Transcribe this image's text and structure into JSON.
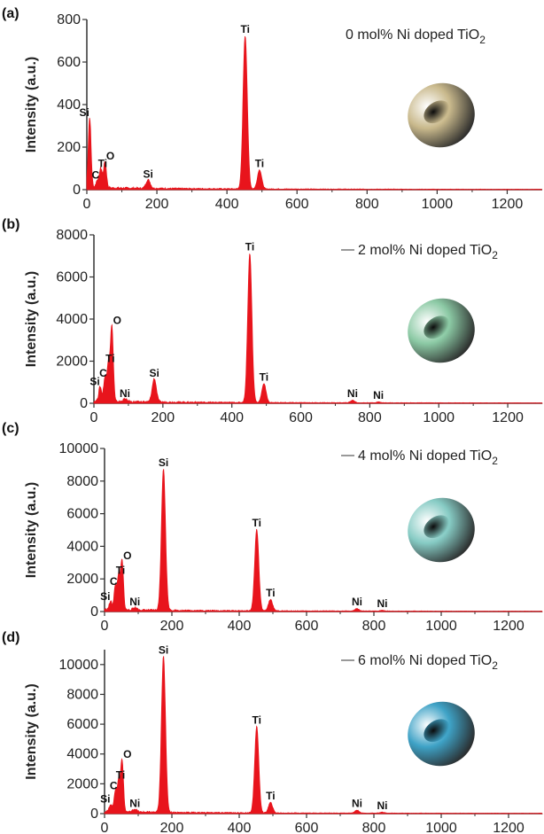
{
  "chart_data": [
    {
      "type": "line",
      "panel_label": "(a)",
      "legend": "0 mol% Ni doped TiO",
      "legend_sub": "2",
      "ylabel": "Intensity (a.u.)",
      "xlim": [
        0,
        1300
      ],
      "ylim": [
        0,
        800
      ],
      "xticks": [
        "0",
        "200",
        "400",
        "600",
        "800",
        "1000",
        "1200"
      ],
      "yticks": [
        "0",
        "200",
        "400",
        "600",
        "800"
      ],
      "series": [
        {
          "color": "#e8141c",
          "peaks": [
            {
              "x": 8,
              "y": 330,
              "label": "Si"
            },
            {
              "x": 30,
              "y": 35,
              "label": "C"
            },
            {
              "x": 40,
              "y": 90,
              "label": "Ti"
            },
            {
              "x": 52,
              "y": 125,
              "label": "O"
            },
            {
              "x": 175,
              "y": 40,
              "label": "Si"
            },
            {
              "x": 452,
              "y": 720,
              "label": "Ti"
            },
            {
              "x": 493,
              "y": 90,
              "label": "Ti"
            }
          ]
        }
      ],
      "blob_color": "#c9b98c"
    },
    {
      "type": "line",
      "panel_label": "(b)",
      "legend": "2 mol% Ni doped TiO",
      "legend_sub": "2",
      "ylabel": "Intensity (a.u.)",
      "xlim": [
        0,
        1300
      ],
      "ylim": [
        0,
        8000
      ],
      "xticks": [
        "0",
        "200",
        "400",
        "600",
        "800",
        "1000",
        "1200"
      ],
      "yticks": [
        "0",
        "2000",
        "4000",
        "6000",
        "8000"
      ],
      "series": [
        {
          "color": "#e8141c",
          "peaks": [
            {
              "x": 18,
              "y": 700,
              "label": "Si"
            },
            {
              "x": 32,
              "y": 1100,
              "label": "C"
            },
            {
              "x": 42,
              "y": 1800,
              "label": "Ti"
            },
            {
              "x": 52,
              "y": 3600,
              "label": "O"
            },
            {
              "x": 90,
              "y": 120,
              "label": "Ni"
            },
            {
              "x": 175,
              "y": 1100,
              "label": "Si"
            },
            {
              "x": 452,
              "y": 7100,
              "label": "Ti"
            },
            {
              "x": 493,
              "y": 900,
              "label": "Ti"
            },
            {
              "x": 750,
              "y": 120,
              "label": "Ni"
            },
            {
              "x": 825,
              "y": 40,
              "label": "Ni"
            }
          ]
        }
      ],
      "blob_color": "#8bc9a4"
    },
    {
      "type": "line",
      "panel_label": "(c)",
      "legend": "4 mol% Ni doped TiO",
      "legend_sub": "2",
      "ylabel": "Intensity (a.u.)",
      "xlim": [
        0,
        1300
      ],
      "ylim": [
        0,
        10000
      ],
      "xticks": [
        "0",
        "200",
        "400",
        "600",
        "800",
        "1000",
        "1200"
      ],
      "yticks": [
        "0",
        "2000",
        "4000",
        "6000",
        "8000",
        "10000"
      ],
      "series": [
        {
          "color": "#e8141c",
          "peaks": [
            {
              "x": 18,
              "y": 500,
              "label": "Si"
            },
            {
              "x": 32,
              "y": 1400,
              "label": "C"
            },
            {
              "x": 42,
              "y": 2100,
              "label": "Ti"
            },
            {
              "x": 52,
              "y": 3000,
              "label": "O"
            },
            {
              "x": 90,
              "y": 150,
              "label": "Ni"
            },
            {
              "x": 175,
              "y": 8700,
              "label": "Si"
            },
            {
              "x": 452,
              "y": 5000,
              "label": "Ti"
            },
            {
              "x": 493,
              "y": 700,
              "label": "Ti"
            },
            {
              "x": 750,
              "y": 150,
              "label": "Ni"
            },
            {
              "x": 825,
              "y": 50,
              "label": "Ni"
            }
          ]
        }
      ],
      "blob_color": "#86cbc4"
    },
    {
      "type": "line",
      "panel_label": "(d)",
      "legend": "6 mol% Ni doped TiO",
      "legend_sub": "2",
      "ylabel": "Intensity (a.u.)",
      "xlim": [
        0,
        1300
      ],
      "ylim": [
        0,
        11000
      ],
      "xticks": [
        "0",
        "200",
        "400",
        "600",
        "800",
        "1000",
        "1200"
      ],
      "yticks": [
        "0",
        "2000",
        "4000",
        "6000",
        "8000",
        "10000"
      ],
      "series": [
        {
          "color": "#e8141c",
          "peaks": [
            {
              "x": 18,
              "y": 500,
              "label": "Si"
            },
            {
              "x": 32,
              "y": 1400,
              "label": "C"
            },
            {
              "x": 42,
              "y": 2100,
              "label": "Ti"
            },
            {
              "x": 52,
              "y": 3500,
              "label": "O"
            },
            {
              "x": 90,
              "y": 200,
              "label": "Ni"
            },
            {
              "x": 175,
              "y": 10500,
              "label": "Si"
            },
            {
              "x": 452,
              "y": 5800,
              "label": "Ti"
            },
            {
              "x": 493,
              "y": 700,
              "label": "Ti"
            },
            {
              "x": 750,
              "y": 200,
              "label": "Ni"
            },
            {
              "x": 825,
              "y": 60,
              "label": "Ni"
            }
          ]
        }
      ],
      "blob_color": "#3ea2c6"
    }
  ]
}
